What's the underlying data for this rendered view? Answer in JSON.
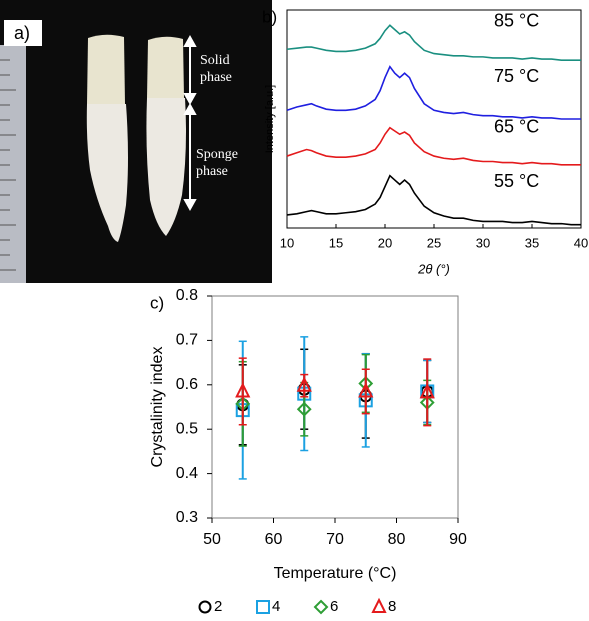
{
  "photo_panel": {
    "label": "a)",
    "annotations": [
      "Solid phase",
      "Sponge phase"
    ]
  },
  "chart_data": [
    {
      "type": "line",
      "panel_label": "b)",
      "xlabel": "2θ (°)",
      "ylabel": "Intensity [a.u.]",
      "xlim": [
        10,
        40
      ],
      "xticks": [
        10,
        15,
        20,
        25,
        30,
        35,
        40
      ],
      "ylim": [
        0,
        100
      ],
      "x": [
        10,
        11,
        12,
        12.5,
        13,
        14,
        15,
        16,
        17,
        18,
        19,
        19.5,
        20,
        20.5,
        21,
        21.5,
        22,
        22.5,
        23,
        24,
        25,
        26,
        27,
        28,
        29,
        30,
        31,
        32,
        33,
        34,
        35,
        36,
        37,
        38,
        39,
        40
      ],
      "series": [
        {
          "name": "55 °C",
          "color": "#000000",
          "values": [
            6,
            6.5,
            7.5,
            8,
            7.5,
            6.5,
            6.5,
            7,
            7.5,
            8.5,
            11,
            14,
            19,
            24,
            22,
            20,
            22,
            20,
            16,
            10,
            7,
            5.5,
            4.5,
            4.5,
            3.5,
            3,
            3,
            3,
            2.5,
            2.5,
            3,
            2.5,
            2,
            2,
            1.5,
            1.5
          ]
        },
        {
          "name": "65 °C",
          "color": "#e41a1c",
          "values": [
            33,
            34.5,
            36,
            35.5,
            34.5,
            33,
            32.5,
            32.5,
            33,
            34,
            36,
            39,
            43,
            46,
            44.5,
            43,
            44,
            42.5,
            39,
            35,
            33,
            32,
            31.5,
            32,
            31,
            30.5,
            30.5,
            30,
            30,
            29.5,
            30,
            29.5,
            29.5,
            29,
            29,
            29
          ]
        },
        {
          "name": "75 °C",
          "color": "#1f1fe0",
          "values": [
            54,
            55.5,
            56.5,
            57,
            56,
            54.5,
            54,
            54,
            54.5,
            56,
            59,
            63,
            69,
            74,
            71,
            69,
            71,
            69,
            64,
            57,
            54,
            53,
            52.5,
            53,
            52,
            51.5,
            51.5,
            51,
            51,
            50.5,
            51,
            50.5,
            50.5,
            50,
            50,
            50
          ]
        },
        {
          "name": "85 °C",
          "color": "#1a8f80",
          "values": [
            82,
            82.5,
            83,
            83,
            82.5,
            81.5,
            81,
            81,
            81.5,
            82.5,
            84.5,
            87,
            90.5,
            93,
            91,
            89,
            90,
            88.5,
            85.5,
            81.5,
            80,
            79.5,
            79,
            79,
            78.5,
            78.5,
            78,
            78,
            78,
            77.5,
            78,
            77.5,
            77.5,
            77,
            77,
            77
          ]
        }
      ]
    },
    {
      "type": "scatter",
      "panel_label": "c)",
      "xlabel": "Temperature (°C)",
      "ylabel": "Crystalinity index",
      "xlim": [
        50,
        90
      ],
      "xticks": [
        50,
        60,
        70,
        80,
        90
      ],
      "ylim": [
        0.3,
        0.8
      ],
      "yticks": [
        0.3,
        0.4,
        0.5,
        0.6,
        0.7,
        0.8
      ],
      "x": [
        55,
        65,
        75,
        85
      ],
      "series": [
        {
          "name": "2",
          "color": "#000000",
          "marker": "circle",
          "values": [
            0.555,
            0.59,
            0.575,
            0.585
          ],
          "errors": [
            0.09,
            0.09,
            0.095,
            0.07
          ]
        },
        {
          "name": "4",
          "color": "#1ba1e2",
          "marker": "square",
          "values": [
            0.543,
            0.58,
            0.565,
            0.585
          ],
          "errors": [
            0.155,
            0.128,
            0.105,
            0.07
          ]
        },
        {
          "name": "6",
          "color": "#2e9e35",
          "marker": "diamond",
          "values": [
            0.557,
            0.545,
            0.603,
            0.56
          ],
          "errors": [
            0.095,
            0.06,
            0.065,
            0.05
          ]
        },
        {
          "name": "8",
          "color": "#e41a1c",
          "marker": "triangle",
          "values": [
            0.585,
            0.598,
            0.585,
            0.583
          ],
          "errors": [
            0.075,
            0.025,
            0.05,
            0.075
          ]
        }
      ]
    }
  ]
}
